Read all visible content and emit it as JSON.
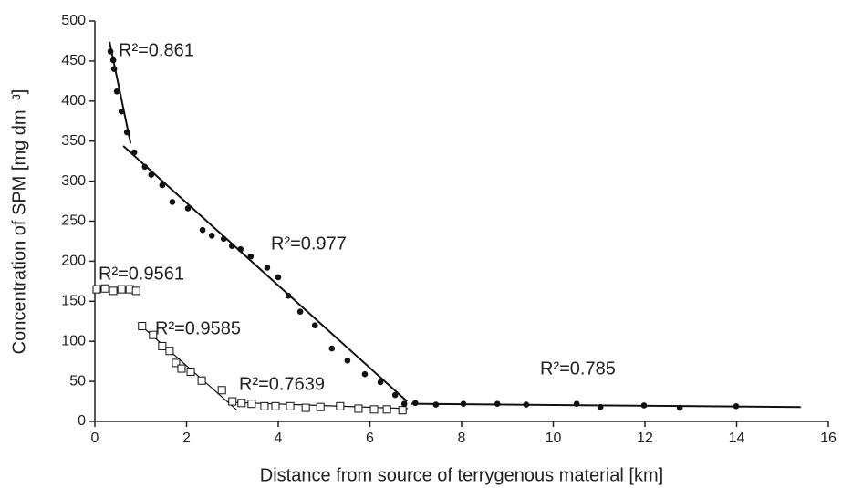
{
  "chart_data": {
    "type": "scatter",
    "x_label": "Distance from source of terrygenous material [km]",
    "y_label": "Concentration of SPM [mg dm⁻³]",
    "xlim": [
      0,
      16
    ],
    "xticks": [
      0,
      2,
      4,
      6,
      8,
      10,
      12,
      14,
      16
    ],
    "ylim": [
      0,
      500
    ],
    "yticks": [
      0,
      50,
      100,
      150,
      200,
      250,
      300,
      350,
      400,
      450,
      500
    ],
    "grid": false,
    "series": [
      {
        "marker": "filled-circle",
        "color": "#111111",
        "x": [
          0.34,
          0.4,
          0.42,
          0.48,
          0.58,
          0.7,
          0.86,
          1.09,
          1.23,
          1.47,
          1.69,
          2.03,
          2.35,
          2.55,
          2.81,
          2.99,
          3.18,
          3.4,
          3.76,
          4.0,
          4.22,
          4.48,
          4.8,
          5.17,
          5.51,
          5.89,
          6.23,
          6.55,
          6.75,
          6.99,
          7.44,
          8.04,
          8.78,
          9.41,
          10.51,
          11.03,
          11.98,
          12.76,
          13.99
        ],
        "values": [
          462,
          451,
          440,
          412,
          387,
          361,
          336,
          318,
          308,
          295,
          274,
          266,
          239,
          232,
          228,
          219,
          215,
          206,
          192,
          180,
          157,
          137,
          120,
          91,
          76,
          59,
          49,
          33,
          22,
          23,
          21,
          22,
          22,
          21,
          22,
          18,
          20,
          17,
          19
        ]
      },
      {
        "marker": "open-square",
        "color": "#111111",
        "x": [
          0.04,
          0.22,
          0.4,
          0.58,
          0.76,
          0.9,
          1.03,
          1.27,
          1.47,
          1.63,
          1.77,
          1.89,
          2.09,
          2.33,
          2.77,
          3.0,
          3.2,
          3.42,
          3.7,
          3.94,
          4.26,
          4.6,
          4.92,
          5.35,
          5.75,
          6.09,
          6.37,
          6.71
        ],
        "values": [
          165,
          166,
          163,
          165,
          165,
          163,
          119,
          108,
          94,
          88,
          73,
          66,
          62,
          51,
          39,
          25,
          23,
          22,
          19,
          19,
          19,
          17,
          18,
          19,
          16,
          15,
          15,
          14
        ]
      }
    ],
    "trendlines": [
      {
        "x": [
          0.32,
          0.78
        ],
        "values": [
          474,
          347
        ],
        "width": 2
      },
      {
        "x": [
          0.62,
          6.81
        ],
        "values": [
          344,
          25
        ],
        "width": 2
      },
      {
        "x": [
          6.89,
          15.4
        ],
        "values": [
          22,
          18
        ],
        "width": 2
      },
      {
        "x": [
          0,
          0.94
        ],
        "values": [
          164,
          161
        ],
        "width": 1.2
      },
      {
        "x": [
          0.96,
          3.1
        ],
        "values": [
          122,
          14
        ],
        "width": 1.2
      },
      {
        "x": [
          2.9,
          6.83
        ],
        "values": [
          24,
          16
        ],
        "width": 1.2
      }
    ],
    "annotations": [
      "R²=0.861",
      "R²=0.977",
      "R²=0.9561",
      "R²=0.9585",
      "R²=0.7639",
      "R²=0.785"
    ]
  }
}
